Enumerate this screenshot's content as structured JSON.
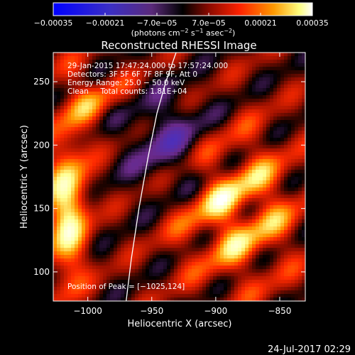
{
  "colorbar": {
    "tick_labels": [
      "−0.00035",
      "−0.00021",
      "−7.0e−05",
      "7.0e−05",
      "0.00021",
      "0.00035"
    ],
    "tick_values": [
      -0.00035,
      -0.00021,
      -7e-05,
      7e-05,
      0.00021,
      0.00035
    ],
    "range": [
      -0.00035,
      0.00035
    ],
    "colormap": [
      "#0000ff",
      "#4f2fb8",
      "#6a2a8a",
      "#000000",
      "#9a1000",
      "#ff2a00",
      "#ff9a00",
      "#ffff90",
      "#ffffff"
    ]
  },
  "unit_label": {
    "prefix": "(photons cm",
    "exp1": "−2",
    "mid1": " s",
    "exp2": "−1",
    "mid2": " asec",
    "exp3": "−2",
    "suffix": ")"
  },
  "chart_data": {
    "type": "heatmap",
    "title": "Reconstructed RHESSI Image",
    "xlabel": "Heliocentric X (arcsec)",
    "ylabel": "Heliocentric Y (arcsec)",
    "xlim": [
      -1027,
      -830
    ],
    "ylim": [
      77,
      273
    ],
    "x_ticks": [
      -1000,
      -950,
      -900,
      -850
    ],
    "x_tick_labels": [
      "−1000",
      "−950",
      "−900",
      "−850"
    ],
    "y_ticks": [
      100,
      150,
      200,
      250
    ],
    "y_tick_labels": [
      "100",
      "150",
      "200",
      "250"
    ],
    "limb_curve": {
      "x": [
        -970,
        -966,
        -960,
        -953,
        -946,
        -939,
        -931
      ],
      "y": [
        77,
        110,
        150,
        190,
        225,
        250,
        273
      ]
    },
    "annotations": [
      "29-Jan-2015 17:47:24.000 to 17:57:24.000",
      "Detectors: 3F 5F 6F 7F 8F 9F, Att 0",
      "Energy Range: 25.0 − 50.0 keV",
      "Clean     Total counts: 1.81E+04"
    ],
    "peak_label": "Position of Peak = [−1025,124]",
    "peak_position": [
      -1025,
      124
    ],
    "grid": false
  },
  "footer": {
    "timestamp": "24-Jul-2017 02:29"
  }
}
